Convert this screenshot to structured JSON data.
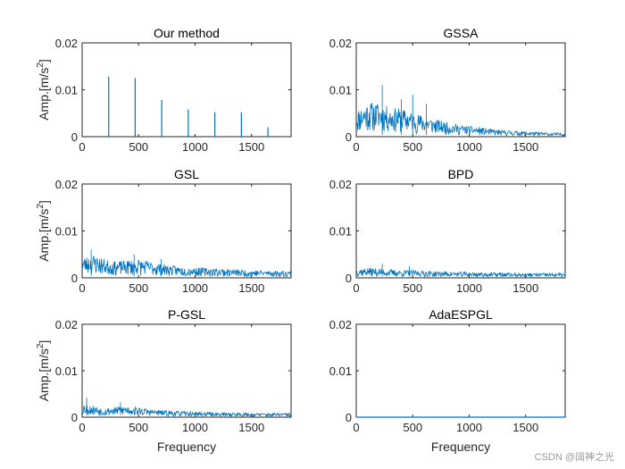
{
  "figure": {
    "watermark": "CSDN @阔神之光"
  },
  "chart_data": [
    {
      "type": "line",
      "render": "stem",
      "title": "Our method",
      "xlabel": "",
      "ylabel": "Amp.[m/s",
      "ylabel_sup": "2",
      "ylabel_end": "]",
      "xlim": [
        0,
        1850
      ],
      "ylim": [
        0,
        0.02
      ],
      "xticks": [
        0,
        500,
        1000,
        1500
      ],
      "yticks": [
        0,
        0.01,
        0.02
      ],
      "xtick_labels": [
        "0",
        "500",
        "1000",
        "1500"
      ],
      "ytick_labels": [
        "0",
        "0.01",
        "0.02"
      ],
      "x": [
        235,
        470,
        705,
        940,
        1175,
        1410,
        1645
      ],
      "values": [
        0.0128,
        0.0125,
        0.0078,
        0.0058,
        0.0052,
        0.0052,
        0.002
      ]
    },
    {
      "type": "line",
      "render": "noise",
      "title": "GSSA",
      "xlabel": "",
      "ylabel": "",
      "xlim": [
        0,
        1850
      ],
      "ylim": [
        0,
        0.02
      ],
      "xticks": [
        0,
        500,
        1000,
        1500
      ],
      "yticks": [
        0,
        0.01,
        0.02
      ],
      "xtick_labels": [
        "0",
        "500",
        "1000",
        "1500"
      ],
      "ytick_labels": [
        "0",
        "0.01",
        "0.02"
      ],
      "x_sampled": [
        0,
        100,
        200,
        300,
        400,
        500,
        600,
        700,
        800,
        900,
        1000,
        1100,
        1200,
        1300,
        1400,
        1500,
        1600,
        1700,
        1850
      ],
      "envelope": [
        0.0045,
        0.006,
        0.0058,
        0.005,
        0.0048,
        0.0042,
        0.0036,
        0.003,
        0.0025,
        0.0021,
        0.0018,
        0.0016,
        0.0013,
        0.0011,
        0.001,
        0.0009,
        0.0008,
        0.0007,
        0.0006
      ],
      "peak_x": [
        230,
        500,
        400,
        620
      ],
      "peak_values": [
        0.011,
        0.009,
        0.008,
        0.007
      ],
      "seed": 11
    },
    {
      "type": "line",
      "render": "noise",
      "title": "GSL",
      "xlabel": "",
      "ylabel": "Amp.[m/s",
      "ylabel_sup": "2",
      "ylabel_end": "]",
      "xlim": [
        0,
        1850
      ],
      "ylim": [
        0,
        0.02
      ],
      "xticks": [
        0,
        500,
        1000,
        1500
      ],
      "yticks": [
        0,
        0.01,
        0.02
      ],
      "xtick_labels": [
        "0",
        "500",
        "1000",
        "1500"
      ],
      "ytick_labels": [
        "0",
        "0.01",
        "0.02"
      ],
      "x_sampled": [
        0,
        100,
        200,
        300,
        400,
        500,
        600,
        700,
        800,
        900,
        1000,
        1100,
        1200,
        1300,
        1400,
        1500,
        1600,
        1700,
        1850
      ],
      "envelope": [
        0.0035,
        0.004,
        0.0032,
        0.0028,
        0.003,
        0.0032,
        0.0028,
        0.0024,
        0.0021,
        0.0019,
        0.0018,
        0.0017,
        0.0016,
        0.0015,
        0.0014,
        0.0013,
        0.0013,
        0.0012,
        0.0012
      ],
      "peak_x": [
        80,
        460,
        700
      ],
      "peak_values": [
        0.006,
        0.005,
        0.004
      ],
      "seed": 23
    },
    {
      "type": "line",
      "render": "noise",
      "title": "BPD",
      "xlabel": "",
      "ylabel": "",
      "xlim": [
        0,
        1850
      ],
      "ylim": [
        0,
        0.02
      ],
      "xticks": [
        0,
        500,
        1000,
        1500
      ],
      "yticks": [
        0,
        0.01,
        0.02
      ],
      "xtick_labels": [
        "0",
        "500",
        "1000",
        "1500"
      ],
      "ytick_labels": [
        "0",
        "0.01",
        "0.02"
      ],
      "x_sampled": [
        0,
        100,
        200,
        300,
        400,
        500,
        600,
        700,
        800,
        900,
        1000,
        1100,
        1200,
        1300,
        1400,
        1500,
        1600,
        1700,
        1850
      ],
      "envelope": [
        0.0016,
        0.0017,
        0.0016,
        0.0014,
        0.0013,
        0.0013,
        0.0012,
        0.0011,
        0.0011,
        0.001,
        0.001,
        0.0009,
        0.0009,
        0.0009,
        0.0008,
        0.0008,
        0.0008,
        0.0008,
        0.0008
      ],
      "peak_x": [
        230,
        470
      ],
      "peak_values": [
        0.003,
        0.0025
      ],
      "seed": 37
    },
    {
      "type": "line",
      "render": "noise",
      "title": "P-GSL",
      "xlabel": "Frequency",
      "ylabel": "Amp.[m/s",
      "ylabel_sup": "2",
      "ylabel_end": "]",
      "xlim": [
        0,
        1850
      ],
      "ylim": [
        0,
        0.02
      ],
      "xticks": [
        0,
        500,
        1000,
        1500
      ],
      "yticks": [
        0,
        0.01,
        0.02
      ],
      "xtick_labels": [
        "0",
        "500",
        "1000",
        "1500"
      ],
      "ytick_labels": [
        "0",
        "0.01",
        "0.02"
      ],
      "x_sampled": [
        0,
        100,
        200,
        300,
        400,
        500,
        600,
        700,
        800,
        900,
        1000,
        1100,
        1200,
        1300,
        1400,
        1500,
        1600,
        1700,
        1850
      ],
      "envelope": [
        0.0025,
        0.002,
        0.0016,
        0.0018,
        0.002,
        0.0017,
        0.0014,
        0.0012,
        0.0011,
        0.001,
        0.0009,
        0.0009,
        0.0008,
        0.0008,
        0.0008,
        0.0007,
        0.0007,
        0.0007,
        0.0007
      ],
      "peak_x": [
        40,
        340
      ],
      "peak_values": [
        0.0042,
        0.0032
      ],
      "seed": 53
    },
    {
      "type": "line",
      "render": "flat",
      "title": "AdaESPGL",
      "xlabel": "Frequency",
      "ylabel": "",
      "xlim": [
        0,
        1850
      ],
      "ylim": [
        0,
        0.02
      ],
      "xticks": [
        0,
        500,
        1000,
        1500
      ],
      "yticks": [
        0,
        0.01,
        0.02
      ],
      "xtick_labels": [
        "0",
        "500",
        "1000",
        "1500"
      ],
      "ytick_labels": [
        "0",
        "0.01",
        "0.02"
      ],
      "x": [
        0,
        1850
      ],
      "values": [
        5e-05,
        5e-05
      ]
    }
  ]
}
